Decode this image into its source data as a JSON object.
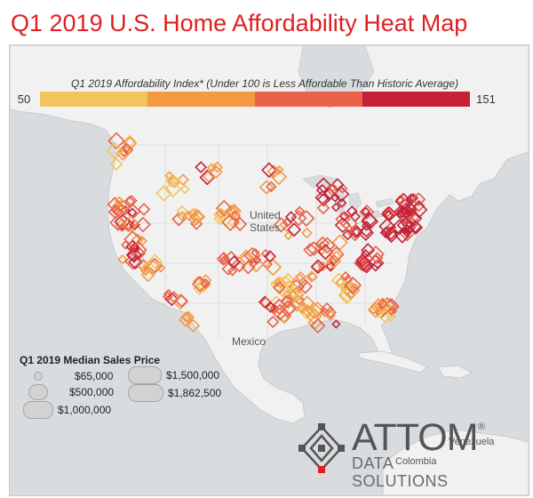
{
  "title": "Q1 2019 U.S. Home Affordability Heat Map",
  "legend": {
    "title": "Q1 2019 Affordability Index* (Under 100 is Less Affordable Than Historic Average)",
    "min": "50",
    "max": "151",
    "colors": [
      "#f2c55c",
      "#f39a45",
      "#e8634a",
      "#c5223a"
    ]
  },
  "map_labels": {
    "country_us": "United States",
    "country_mexico": "Mexico",
    "venezuela": "Venezuela",
    "colombia": "Colombia"
  },
  "size_legend": {
    "title": "Q1 2019 Median Sales Price",
    "items": [
      "$65,000",
      "$500,000",
      "$1,000,000",
      "$1,500,000",
      "$1,862,500"
    ]
  },
  "logo": {
    "name": "ATTOM",
    "subtitle": "DATA SOLUTIONS",
    "mark": "®"
  },
  "colors": {
    "title": "#e02020",
    "land": "#f1f1f1",
    "water": "#d9dcdf"
  }
}
